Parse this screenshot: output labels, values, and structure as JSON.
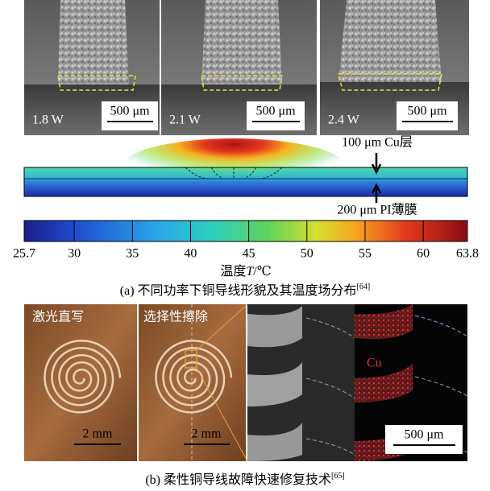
{
  "panel_a": {
    "images": [
      {
        "power": "1.8 W",
        "scale": "500 μm"
      },
      {
        "power": "2.1 W",
        "scale": "500 μm"
      },
      {
        "power": "2.4 W",
        "scale": "500 μm"
      }
    ],
    "cu_layer": "100 μm Cu层",
    "pi_film": "200 μm PI薄膜",
    "colorbar": {
      "ticks": [
        25.7,
        30,
        35,
        40,
        45,
        50,
        55,
        60,
        63.8
      ],
      "label": "温度",
      "label_var": "T",
      "label_unit": "/℃"
    },
    "caption": "(a) 不同功率下铜导线形貌及其温度场分布",
    "caption_ref": "[64]"
  },
  "panel_b": {
    "labels": [
      "激光直写",
      "选择性擦除"
    ],
    "element": "Cu",
    "scales": [
      "2 mm",
      "2 mm",
      "500 μm"
    ],
    "caption": "(b) 柔性铜导线故障快速修复技术",
    "caption_ref": "[65]"
  }
}
